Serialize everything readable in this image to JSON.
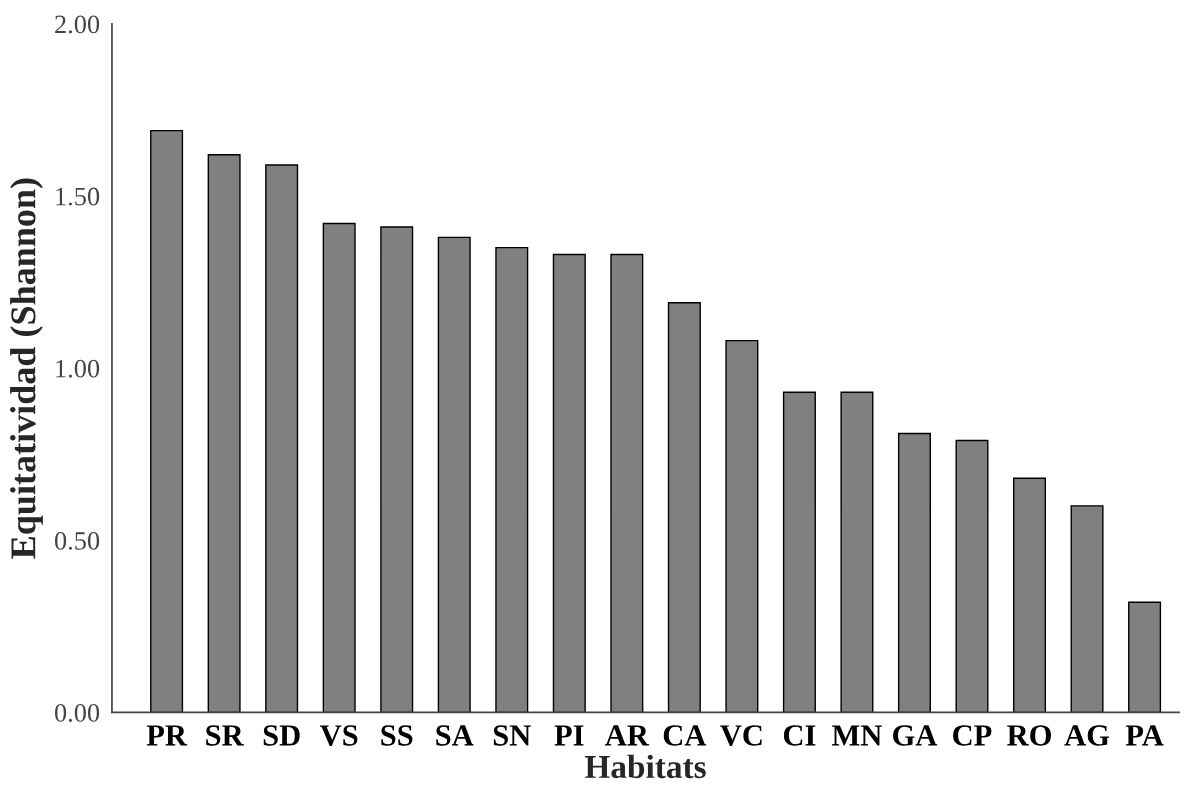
{
  "chart_data": {
    "type": "bar",
    "xlabel": "Habitats",
    "ylabel": "Equitatividad (Shannon)",
    "categories": [
      "PR",
      "SR",
      "SD",
      "VS",
      "SS",
      "SA",
      "SN",
      "PI",
      "AR",
      "CA",
      "VC",
      "CI",
      "MN",
      "GA",
      "CP",
      "RO",
      "AG",
      "PA"
    ],
    "values": [
      1.69,
      1.62,
      1.59,
      1.42,
      1.41,
      1.38,
      1.35,
      1.33,
      1.33,
      1.19,
      1.08,
      0.93,
      0.93,
      0.81,
      0.79,
      0.68,
      0.6,
      0.32
    ],
    "color": "#808080",
    "ylim": [
      0,
      2
    ],
    "yticks": [
      {
        "value": 0,
        "label": "0.00"
      },
      {
        "value": 0.5,
        "label": "0.50"
      },
      {
        "value": 1,
        "label": "1.00"
      },
      {
        "value": 1.5,
        "label": "1.50"
      },
      {
        "value": 2,
        "label": "2.00"
      }
    ],
    "grid": false,
    "legend": false
  }
}
